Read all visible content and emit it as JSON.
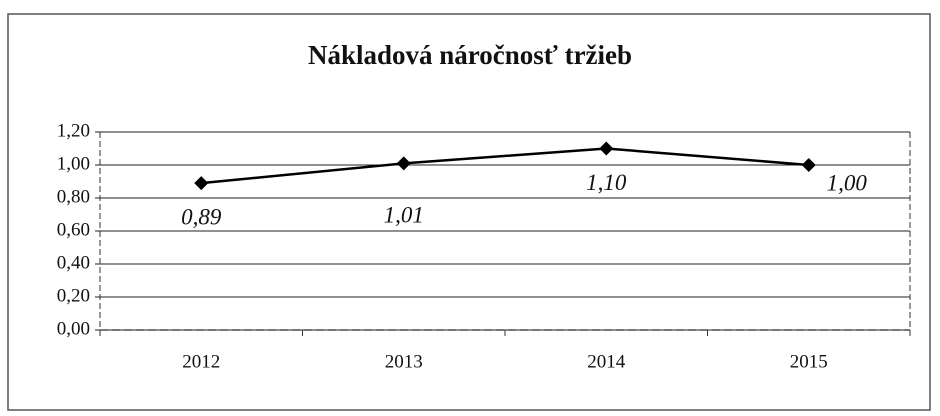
{
  "chart_data": {
    "type": "line",
    "title": "Nákladová náročnosť tržieb",
    "categories": [
      "2012",
      "2013",
      "2014",
      "2015"
    ],
    "series": [
      {
        "color": "#000000",
        "values": [
          0.89,
          1.01,
          1.1,
          1.0
        ],
        "value_labels": [
          "0,89",
          "1,01",
          "1,10",
          "1,00"
        ]
      }
    ],
    "ylim": [
      0,
      1.2
    ],
    "yticks": [
      {
        "value": 0,
        "label": "0,00"
      },
      {
        "value": 0.2,
        "label": "0,20"
      },
      {
        "value": 0.4,
        "label": "0,40"
      },
      {
        "value": 0.6,
        "label": "0,60"
      },
      {
        "value": 0.8,
        "label": "0,80"
      },
      {
        "value": 1.0,
        "label": "1,00"
      },
      {
        "value": 1.2,
        "label": "1,20"
      }
    ],
    "grid": true
  }
}
